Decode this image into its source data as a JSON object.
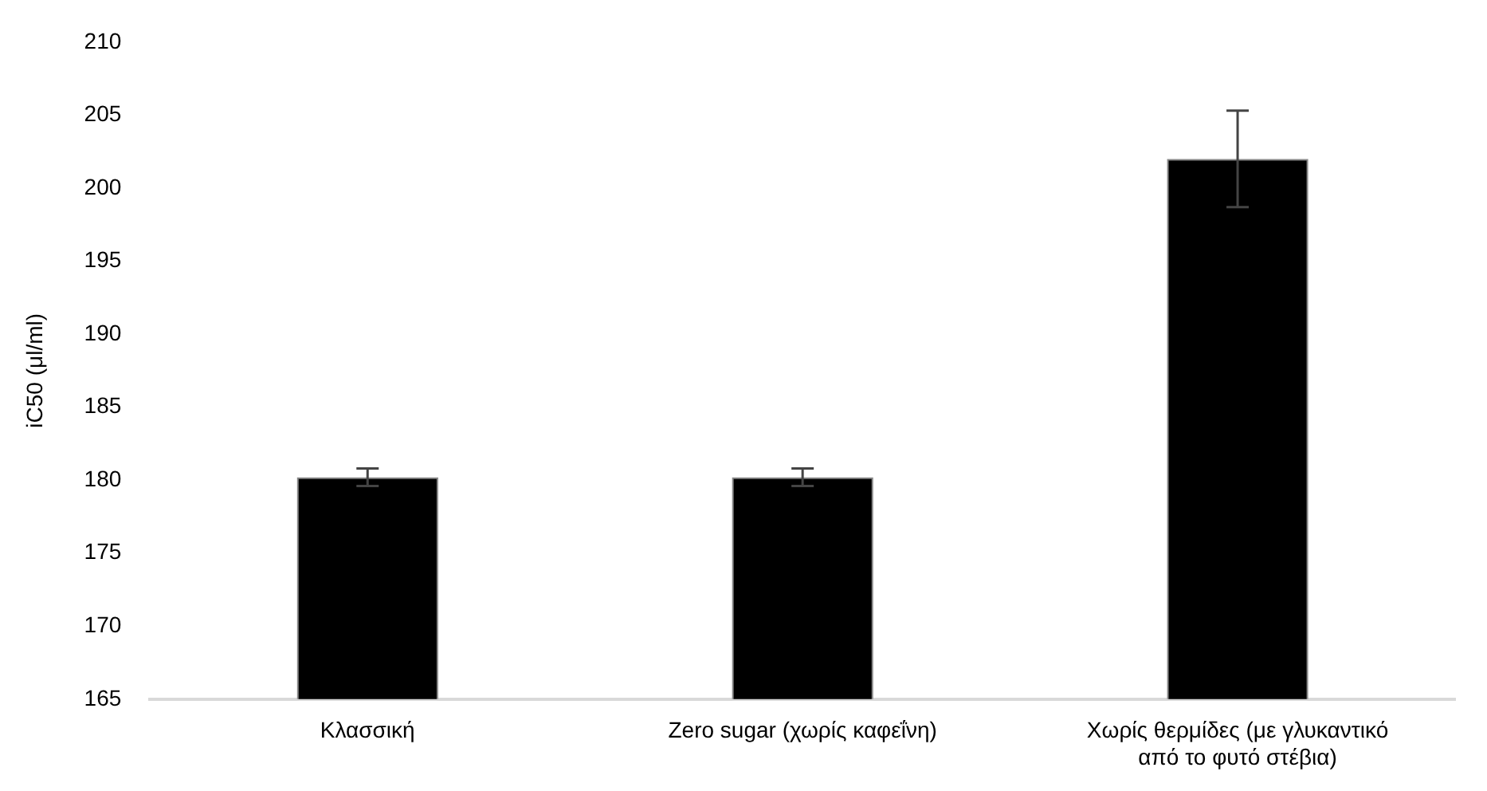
{
  "chart_data": {
    "type": "bar",
    "ylabel": "iC50 (μl/ml)",
    "categories": [
      "Κλασσική",
      "Zero sugar (χωρίς καφεΐνη)",
      "Χωρίς θερμίδες (με γλυκαντικό από το φυτό στέβια)"
    ],
    "values": [
      180.2,
      180.2,
      202
    ],
    "errors": [
      0.6,
      0.6,
      3.3
    ],
    "color": "#000000",
    "ylim": [
      165,
      210
    ],
    "yticks": [
      165,
      170,
      175,
      180,
      185,
      190,
      195,
      200,
      205,
      210
    ],
    "grid": false,
    "legend": false
  }
}
